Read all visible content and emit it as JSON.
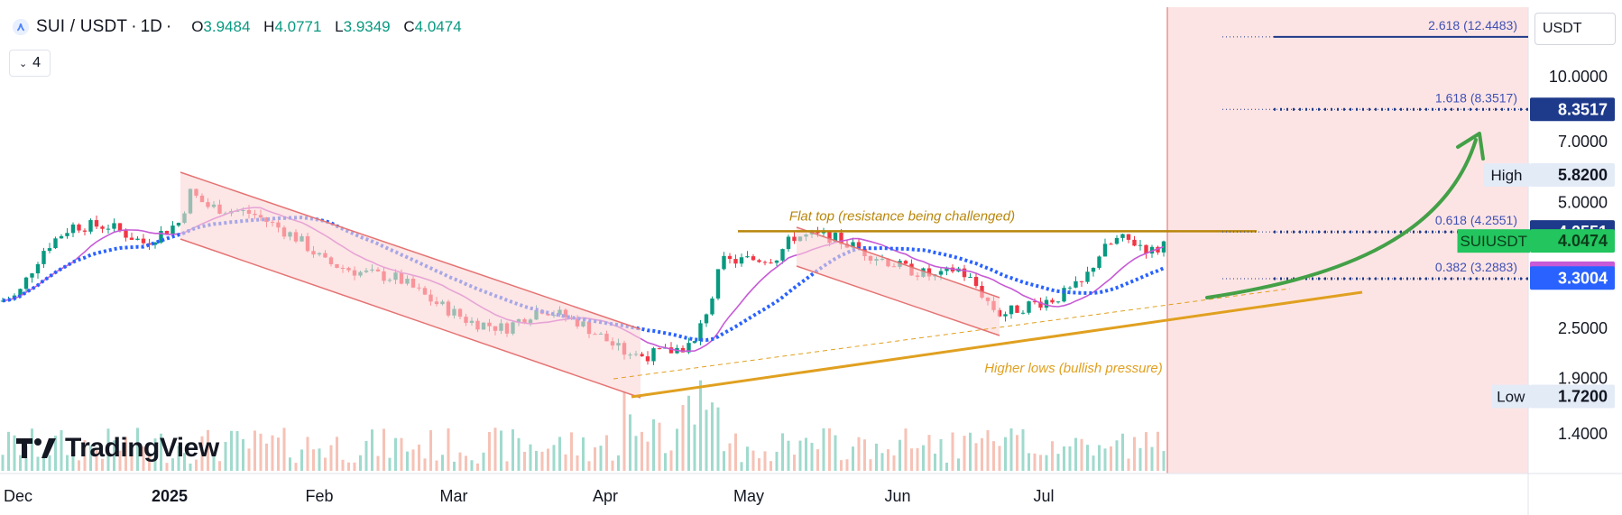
{
  "header": {
    "symbol": "SUI / USDT",
    "timeframe": "1D",
    "open_label": "O",
    "open": "3.9484",
    "high_label": "H",
    "high": "4.0771",
    "low_label": "L",
    "low": "3.9349",
    "close_label": "C",
    "close": "4.0474"
  },
  "indicators_toggle": {
    "count": "4"
  },
  "currency_button": "USDT",
  "branding": "TradingView",
  "colors": {
    "up": "#089981",
    "down": "#f23645",
    "ema_blue": "#2962ff",
    "ma_purple": "#c75ad6",
    "trend_orange": "#e0a020",
    "arrow_green": "#43a047",
    "shade_red": "#fde4e4",
    "channel_red": "#e57373",
    "flat_top": "#b8860b"
  },
  "chart_data": {
    "type": "candlestick",
    "y_scale": "log",
    "x_tick_labels": [
      "Dec",
      "2025",
      "Feb",
      "Mar",
      "Apr",
      "May",
      "Jun",
      "Jul"
    ],
    "y_tick_labels": [
      "10.0000",
      "7.0000",
      "5.0000",
      "2.5000",
      "1.9000",
      "1.4000"
    ],
    "y_ticks": [
      10.0,
      7.0,
      5.0,
      2.5,
      1.9,
      1.4
    ],
    "price_badges": [
      {
        "label": "",
        "value": "8.3517",
        "price": 8.3517,
        "color": "#1e3a8a",
        "text_color": "#ffffff"
      },
      {
        "label": "High",
        "value": "5.8200",
        "price": 5.82,
        "color": "#e3ebf7",
        "text_color": "#131722"
      },
      {
        "label": "",
        "value": "4.2551",
        "price": 4.2551,
        "color": "#1e3a8a",
        "text_color": "#ffffff"
      },
      {
        "label": "SUIUSDT",
        "value": "4.0474",
        "price": 4.0474,
        "color": "#22c55e",
        "text_color": "#0b3d1a"
      },
      {
        "label": "",
        "value": "3.3903",
        "price": 3.3903,
        "color": "#c75ad6",
        "text_color": "#ffffff"
      },
      {
        "label": "",
        "value": "3.3004",
        "price": 3.3004,
        "color": "#2962ff",
        "text_color": "#ffffff"
      },
      {
        "label": "Low",
        "value": "1.7200",
        "price": 1.72,
        "color": "#e3ebf7",
        "text_color": "#131722"
      }
    ],
    "fib_levels": [
      {
        "label": "2.618 (12.4483)",
        "price": 12.4483
      },
      {
        "label": "1.618 (8.3517)",
        "price": 8.3517
      },
      {
        "label": "0.618 (4.2551)",
        "price": 4.2551
      },
      {
        "label": "0.382 (3.2883)",
        "price": 3.2883
      }
    ],
    "annotations": [
      {
        "text": "Flat top (resistance being challenged)",
        "price": 4.27
      },
      {
        "text": "Higher lows (bullish pressure)",
        "price": 2.0
      }
    ],
    "flat_top_price": 4.27,
    "shaded_future_region": true,
    "series": [
      {
        "name": "SUIUSDT",
        "type": "candles"
      },
      {
        "name": "",
        "type": "ema",
        "color": "#2962ff"
      },
      {
        "name": "",
        "type": "ma",
        "color": "#c75ad6"
      },
      {
        "name": "",
        "type": "volume"
      }
    ]
  }
}
